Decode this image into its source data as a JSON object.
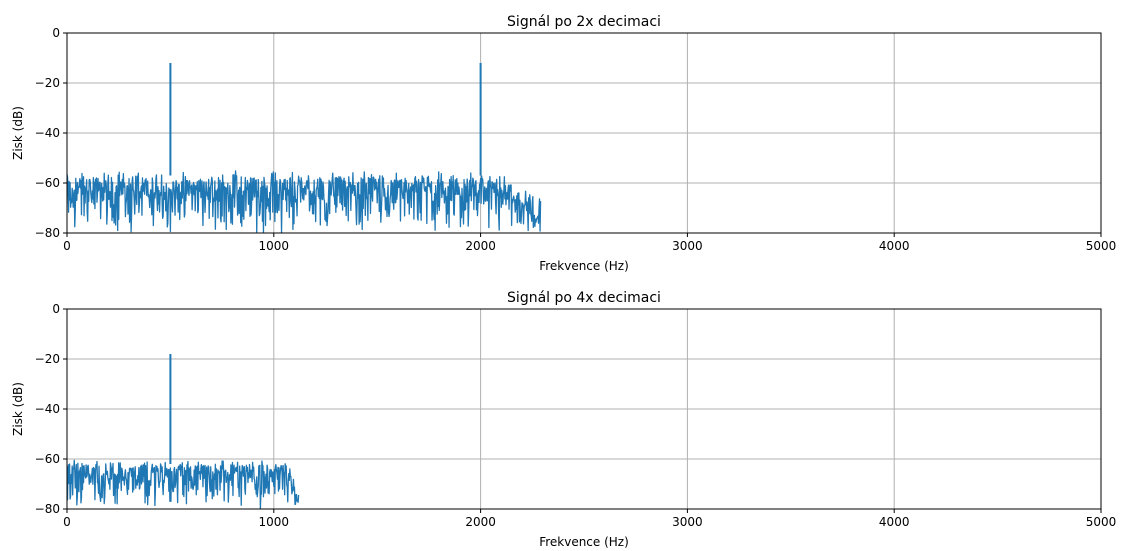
{
  "chart_data": [
    {
      "type": "line",
      "title": "Signál po 2x decimaci",
      "xlabel": "Frekvence (Hz)",
      "ylabel": "Zisk (dB)",
      "xlim": [
        0,
        5000
      ],
      "ylim": [
        -80,
        0
      ],
      "xticks": [
        "0",
        "1000",
        "2000",
        "3000",
        "4000",
        "5000"
      ],
      "yticks": [
        "0",
        "−20",
        "−40",
        "−60",
        "−80"
      ],
      "grid": true,
      "color": "#1f77b4",
      "noise_floor_db": [
        -80,
        -57
      ],
      "noise_band_hz": [
        0,
        2080
      ],
      "rolloff_end_hz": 2290,
      "peaks": [
        {
          "x": 500,
          "y": -12
        },
        {
          "x": 2000,
          "y": -12
        }
      ]
    },
    {
      "type": "line",
      "title": "Signál po 4x decimaci",
      "xlabel": "Frekvence (Hz)",
      "ylabel": "Zisk (dB)",
      "xlim": [
        0,
        5000
      ],
      "ylim": [
        -80,
        0
      ],
      "xticks": [
        "0",
        "1000",
        "2000",
        "3000",
        "4000",
        "5000"
      ],
      "yticks": [
        "0",
        "−20",
        "−40",
        "−60",
        "−80"
      ],
      "grid": true,
      "color": "#1f77b4",
      "noise_floor_db": [
        -80,
        -62
      ],
      "noise_band_hz": [
        0,
        1050
      ],
      "rolloff_end_hz": 1120,
      "peaks": [
        {
          "x": 500,
          "y": -18
        }
      ]
    }
  ]
}
